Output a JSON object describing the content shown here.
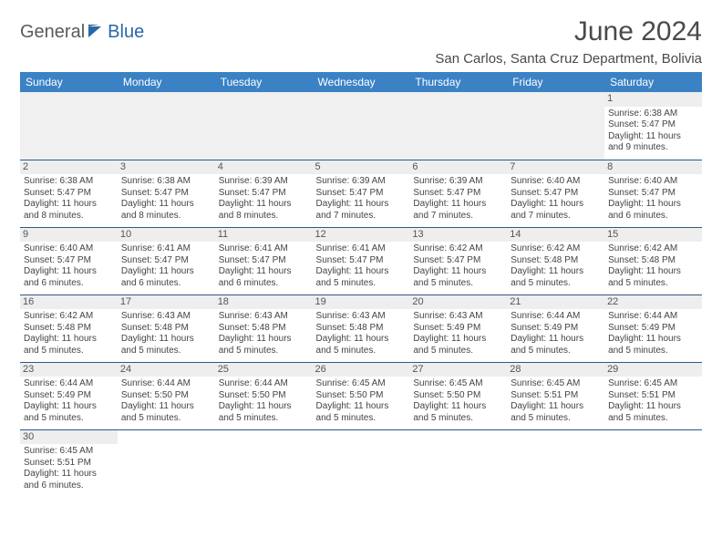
{
  "logo": {
    "general": "General",
    "blue": "Blue"
  },
  "title": "June 2024",
  "subtitle": "San Carlos, Santa Cruz Department, Bolivia",
  "colors": {
    "header_bg": "#3b82c4",
    "header_text": "#ffffff",
    "row_border": "#2a5a8a",
    "daynum_bg": "#eeeeee",
    "logo_gray": "#5a5a5a",
    "logo_blue": "#2968a8"
  },
  "day_headers": [
    "Sunday",
    "Monday",
    "Tuesday",
    "Wednesday",
    "Thursday",
    "Friday",
    "Saturday"
  ],
  "weeks": [
    [
      null,
      null,
      null,
      null,
      null,
      null,
      {
        "n": "1",
        "sr": "Sunrise: 6:38 AM",
        "ss": "Sunset: 5:47 PM",
        "d1": "Daylight: 11 hours",
        "d2": "and 9 minutes."
      }
    ],
    [
      {
        "n": "2",
        "sr": "Sunrise: 6:38 AM",
        "ss": "Sunset: 5:47 PM",
        "d1": "Daylight: 11 hours",
        "d2": "and 8 minutes."
      },
      {
        "n": "3",
        "sr": "Sunrise: 6:38 AM",
        "ss": "Sunset: 5:47 PM",
        "d1": "Daylight: 11 hours",
        "d2": "and 8 minutes."
      },
      {
        "n": "4",
        "sr": "Sunrise: 6:39 AM",
        "ss": "Sunset: 5:47 PM",
        "d1": "Daylight: 11 hours",
        "d2": "and 8 minutes."
      },
      {
        "n": "5",
        "sr": "Sunrise: 6:39 AM",
        "ss": "Sunset: 5:47 PM",
        "d1": "Daylight: 11 hours",
        "d2": "and 7 minutes."
      },
      {
        "n": "6",
        "sr": "Sunrise: 6:39 AM",
        "ss": "Sunset: 5:47 PM",
        "d1": "Daylight: 11 hours",
        "d2": "and 7 minutes."
      },
      {
        "n": "7",
        "sr": "Sunrise: 6:40 AM",
        "ss": "Sunset: 5:47 PM",
        "d1": "Daylight: 11 hours",
        "d2": "and 7 minutes."
      },
      {
        "n": "8",
        "sr": "Sunrise: 6:40 AM",
        "ss": "Sunset: 5:47 PM",
        "d1": "Daylight: 11 hours",
        "d2": "and 6 minutes."
      }
    ],
    [
      {
        "n": "9",
        "sr": "Sunrise: 6:40 AM",
        "ss": "Sunset: 5:47 PM",
        "d1": "Daylight: 11 hours",
        "d2": "and 6 minutes."
      },
      {
        "n": "10",
        "sr": "Sunrise: 6:41 AM",
        "ss": "Sunset: 5:47 PM",
        "d1": "Daylight: 11 hours",
        "d2": "and 6 minutes."
      },
      {
        "n": "11",
        "sr": "Sunrise: 6:41 AM",
        "ss": "Sunset: 5:47 PM",
        "d1": "Daylight: 11 hours",
        "d2": "and 6 minutes."
      },
      {
        "n": "12",
        "sr": "Sunrise: 6:41 AM",
        "ss": "Sunset: 5:47 PM",
        "d1": "Daylight: 11 hours",
        "d2": "and 5 minutes."
      },
      {
        "n": "13",
        "sr": "Sunrise: 6:42 AM",
        "ss": "Sunset: 5:47 PM",
        "d1": "Daylight: 11 hours",
        "d2": "and 5 minutes."
      },
      {
        "n": "14",
        "sr": "Sunrise: 6:42 AM",
        "ss": "Sunset: 5:48 PM",
        "d1": "Daylight: 11 hours",
        "d2": "and 5 minutes."
      },
      {
        "n": "15",
        "sr": "Sunrise: 6:42 AM",
        "ss": "Sunset: 5:48 PM",
        "d1": "Daylight: 11 hours",
        "d2": "and 5 minutes."
      }
    ],
    [
      {
        "n": "16",
        "sr": "Sunrise: 6:42 AM",
        "ss": "Sunset: 5:48 PM",
        "d1": "Daylight: 11 hours",
        "d2": "and 5 minutes."
      },
      {
        "n": "17",
        "sr": "Sunrise: 6:43 AM",
        "ss": "Sunset: 5:48 PM",
        "d1": "Daylight: 11 hours",
        "d2": "and 5 minutes."
      },
      {
        "n": "18",
        "sr": "Sunrise: 6:43 AM",
        "ss": "Sunset: 5:48 PM",
        "d1": "Daylight: 11 hours",
        "d2": "and 5 minutes."
      },
      {
        "n": "19",
        "sr": "Sunrise: 6:43 AM",
        "ss": "Sunset: 5:48 PM",
        "d1": "Daylight: 11 hours",
        "d2": "and 5 minutes."
      },
      {
        "n": "20",
        "sr": "Sunrise: 6:43 AM",
        "ss": "Sunset: 5:49 PM",
        "d1": "Daylight: 11 hours",
        "d2": "and 5 minutes."
      },
      {
        "n": "21",
        "sr": "Sunrise: 6:44 AM",
        "ss": "Sunset: 5:49 PM",
        "d1": "Daylight: 11 hours",
        "d2": "and 5 minutes."
      },
      {
        "n": "22",
        "sr": "Sunrise: 6:44 AM",
        "ss": "Sunset: 5:49 PM",
        "d1": "Daylight: 11 hours",
        "d2": "and 5 minutes."
      }
    ],
    [
      {
        "n": "23",
        "sr": "Sunrise: 6:44 AM",
        "ss": "Sunset: 5:49 PM",
        "d1": "Daylight: 11 hours",
        "d2": "and 5 minutes."
      },
      {
        "n": "24",
        "sr": "Sunrise: 6:44 AM",
        "ss": "Sunset: 5:50 PM",
        "d1": "Daylight: 11 hours",
        "d2": "and 5 minutes."
      },
      {
        "n": "25",
        "sr": "Sunrise: 6:44 AM",
        "ss": "Sunset: 5:50 PM",
        "d1": "Daylight: 11 hours",
        "d2": "and 5 minutes."
      },
      {
        "n": "26",
        "sr": "Sunrise: 6:45 AM",
        "ss": "Sunset: 5:50 PM",
        "d1": "Daylight: 11 hours",
        "d2": "and 5 minutes."
      },
      {
        "n": "27",
        "sr": "Sunrise: 6:45 AM",
        "ss": "Sunset: 5:50 PM",
        "d1": "Daylight: 11 hours",
        "d2": "and 5 minutes."
      },
      {
        "n": "28",
        "sr": "Sunrise: 6:45 AM",
        "ss": "Sunset: 5:51 PM",
        "d1": "Daylight: 11 hours",
        "d2": "and 5 minutes."
      },
      {
        "n": "29",
        "sr": "Sunrise: 6:45 AM",
        "ss": "Sunset: 5:51 PM",
        "d1": "Daylight: 11 hours",
        "d2": "and 5 minutes."
      }
    ],
    [
      {
        "n": "30",
        "sr": "Sunrise: 6:45 AM",
        "ss": "Sunset: 5:51 PM",
        "d1": "Daylight: 11 hours",
        "d2": "and 6 minutes."
      },
      null,
      null,
      null,
      null,
      null,
      null
    ]
  ]
}
